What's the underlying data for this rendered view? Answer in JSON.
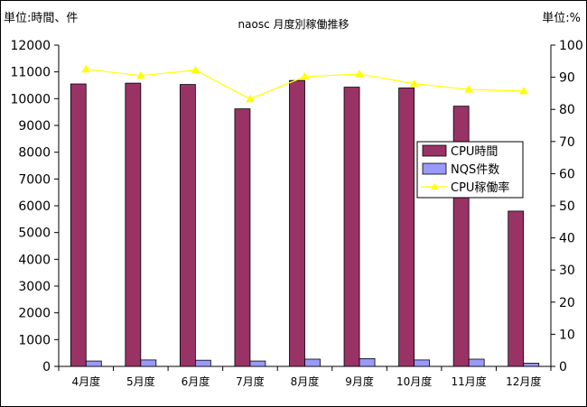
{
  "header": {
    "unit_left": "単位:時間、件",
    "unit_right": "単位:%",
    "title": "naosc 月度別稼働推移"
  },
  "chart_data": {
    "type": "bar",
    "categories": [
      "4月度",
      "5月度",
      "6月度",
      "7月度",
      "8月度",
      "9月度",
      "10月度",
      "11月度",
      "12月度"
    ],
    "series": [
      {
        "name": "CPU時間",
        "axis": "left",
        "type": "bar",
        "color": "#993366",
        "values": [
          10550,
          10580,
          10530,
          9620,
          10680,
          10430,
          10400,
          9720,
          5800
        ]
      },
      {
        "name": "NQS件数",
        "axis": "left",
        "type": "bar",
        "color": "#9999ff",
        "values": [
          200,
          240,
          230,
          200,
          270,
          290,
          240,
          270,
          120
        ]
      },
      {
        "name": "CPU稼働率",
        "axis": "right",
        "type": "line",
        "color": "#ffff00",
        "values": [
          92.5,
          90.5,
          92.2,
          83.2,
          90.2,
          91.0,
          88.0,
          86.2,
          85.7
        ]
      }
    ],
    "y_left": {
      "min": 0,
      "max": 12000,
      "step": 1000
    },
    "y_right": {
      "min": 0,
      "max": 100,
      "step": 10
    },
    "legend_position": "right",
    "grid": false
  }
}
